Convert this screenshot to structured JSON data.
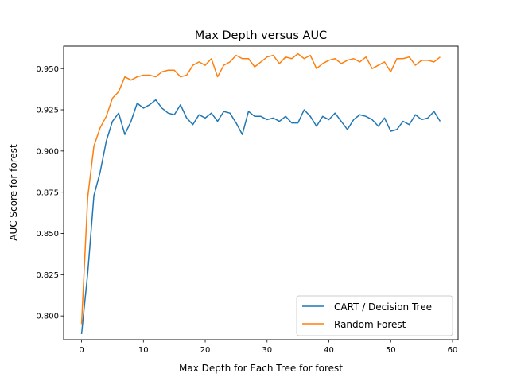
{
  "chart_data": {
    "type": "line",
    "title": "Max Depth versus AUC",
    "xlabel": "Max Depth for Each Tree for forest",
    "ylabel": "AUC Score for forest",
    "xlim": [
      -2.9,
      60.9
    ],
    "ylim": [
      0.7856,
      0.9636
    ],
    "xticks": [
      0,
      10,
      20,
      30,
      40,
      50,
      60
    ],
    "yticks": [
      0.8,
      0.825,
      0.85,
      0.875,
      0.9,
      0.925,
      0.95
    ],
    "ytick_labels": [
      "0.800",
      "0.825",
      "0.850",
      "0.875",
      "0.900",
      "0.925",
      "0.950"
    ],
    "grid": false,
    "legend_position": "lower right",
    "x": [
      0,
      1,
      2,
      3,
      4,
      5,
      6,
      7,
      8,
      9,
      10,
      11,
      12,
      13,
      14,
      15,
      16,
      17,
      18,
      19,
      20,
      21,
      22,
      23,
      24,
      25,
      26,
      27,
      28,
      29,
      30,
      31,
      32,
      33,
      34,
      35,
      36,
      37,
      38,
      39,
      40,
      41,
      42,
      43,
      44,
      45,
      46,
      47,
      48,
      49,
      50,
      51,
      52,
      53,
      54,
      55,
      56,
      57,
      58
    ],
    "series": [
      {
        "name": "CART / Decision Tree",
        "color": "#1f77b4",
        "values": [
          0.789,
          0.826,
          0.873,
          0.887,
          0.906,
          0.918,
          0.923,
          0.91,
          0.918,
          0.929,
          0.926,
          0.928,
          0.931,
          0.926,
          0.923,
          0.922,
          0.928,
          0.92,
          0.916,
          0.922,
          0.92,
          0.923,
          0.918,
          0.924,
          0.923,
          0.917,
          0.91,
          0.924,
          0.921,
          0.921,
          0.919,
          0.92,
          0.918,
          0.921,
          0.917,
          0.917,
          0.925,
          0.921,
          0.915,
          0.921,
          0.919,
          0.923,
          0.918,
          0.913,
          0.919,
          0.922,
          0.921,
          0.919,
          0.915,
          0.92,
          0.912,
          0.913,
          0.918,
          0.916,
          0.922,
          0.919,
          0.92,
          0.924,
          0.918
        ]
      },
      {
        "name": "Random Forest",
        "color": "#ff7f0e",
        "values": [
          0.795,
          0.872,
          0.903,
          0.914,
          0.921,
          0.932,
          0.936,
          0.945,
          0.943,
          0.945,
          0.946,
          0.946,
          0.945,
          0.948,
          0.949,
          0.949,
          0.945,
          0.946,
          0.952,
          0.954,
          0.952,
          0.956,
          0.945,
          0.952,
          0.954,
          0.958,
          0.956,
          0.956,
          0.951,
          0.954,
          0.957,
          0.958,
          0.953,
          0.957,
          0.956,
          0.959,
          0.956,
          0.958,
          0.95,
          0.953,
          0.955,
          0.956,
          0.953,
          0.955,
          0.956,
          0.954,
          0.957,
          0.95,
          0.952,
          0.954,
          0.948,
          0.956,
          0.956,
          0.957,
          0.952,
          0.955,
          0.955,
          0.954,
          0.957
        ]
      }
    ]
  }
}
